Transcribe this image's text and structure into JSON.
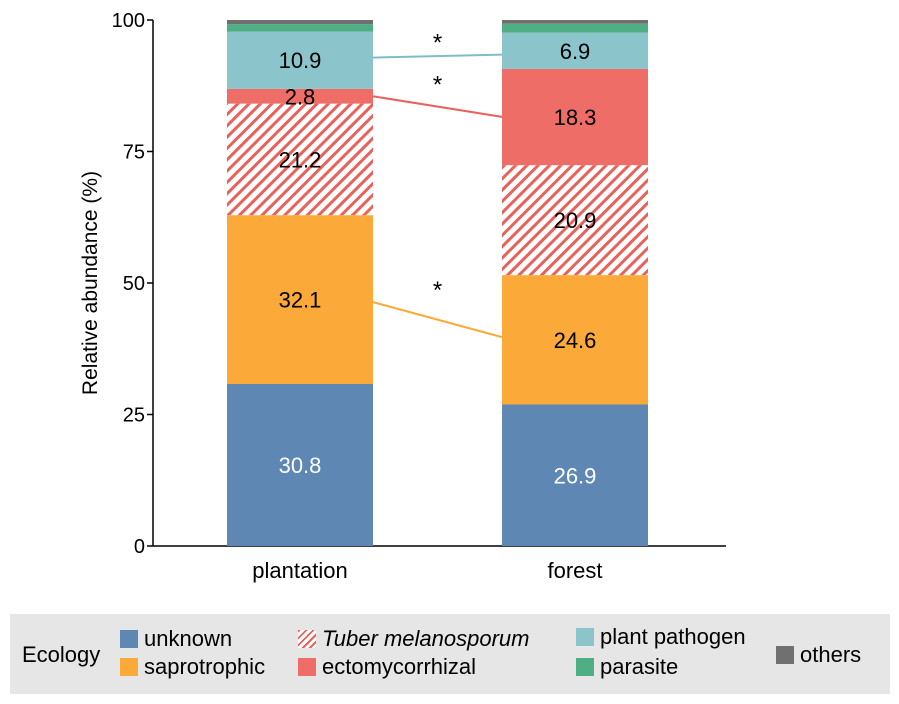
{
  "chart_data": {
    "type": "stacked-bar",
    "ylabel": "Relative abundance (%)",
    "ylim": [
      0,
      100
    ],
    "yticks": [
      0,
      25,
      50,
      75,
      100
    ],
    "categories": [
      "plantation",
      "forest"
    ],
    "series": [
      {
        "key": "unknown",
        "name": "unknown",
        "color": "#5f87b4",
        "label_color": "#ffffff",
        "values": [
          30.8,
          26.9
        ],
        "labels": [
          "30.8",
          "26.9"
        ]
      },
      {
        "key": "saprotrophic",
        "name": "saprotrophic",
        "color": "#fba938",
        "label_color": "#000000",
        "values": [
          32.1,
          24.6
        ],
        "labels": [
          "32.1",
          "24.6"
        ]
      },
      {
        "key": "tuber",
        "name": "Tuber melanosporum",
        "color": "#e8615a",
        "hatched": true,
        "label_color": "#000000",
        "values": [
          21.2,
          20.9
        ],
        "labels": [
          "21.2",
          "20.9"
        ]
      },
      {
        "key": "ecto",
        "name": "ectomycorrhizal",
        "color": "#ee6d67",
        "label_color": "#000000",
        "values": [
          2.8,
          18.3
        ],
        "labels": [
          "2.8",
          "18.3"
        ]
      },
      {
        "key": "pathogen",
        "name": "plant pathogen",
        "color": "#8cc4cb",
        "label_color": "#000000",
        "values": [
          10.9,
          6.9
        ],
        "labels": [
          "10.9",
          "6.9"
        ]
      },
      {
        "key": "parasite",
        "name": "parasite",
        "color": "#4eae84",
        "label_color": "#000000",
        "values": [
          1.4,
          1.7
        ],
        "labels": [
          "",
          ""
        ]
      },
      {
        "key": "others",
        "name": "others",
        "color": "#707070",
        "label_color": "#000000",
        "values": [
          0.8,
          0.7
        ],
        "labels": [
          "",
          ""
        ]
      }
    ],
    "significance": [
      {
        "series": "pathogen",
        "marker": "*",
        "color": "#7fbcc8"
      },
      {
        "series": "ecto",
        "marker": "*",
        "color": "#e8615a"
      },
      {
        "series": "saprotrophic",
        "marker": "*",
        "color": "#fba938"
      }
    ]
  },
  "legend": {
    "title": "Ecology",
    "items": {
      "unknown": "unknown",
      "saprotrophic": "saprotrophic",
      "tuber": "Tuber melanosporum",
      "ecto": "ectomycorrhizal",
      "pathogen": "plant pathogen",
      "parasite": "parasite",
      "others": "others"
    }
  }
}
